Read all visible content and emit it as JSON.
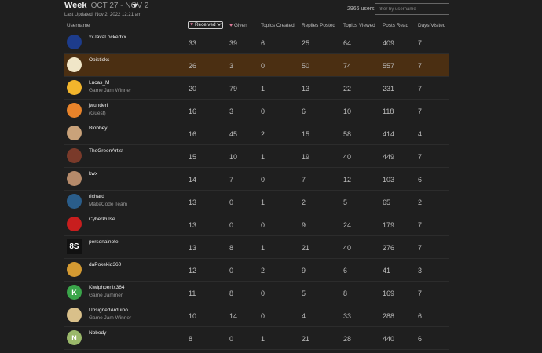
{
  "header": {
    "title": "Week",
    "range": "OCT 27 - NOV 2",
    "updated": "Last Updated: Nov 2, 2022 12:21 am",
    "user_count": "2966 users",
    "filter_placeholder": "filter by username"
  },
  "columns": {
    "username": "Username",
    "received": "Received",
    "given": "Given",
    "topics_created": "Topics Created",
    "replies_posted": "Replies Posted",
    "topics_viewed": "Topics Viewed",
    "posts_read": "Posts Read",
    "days_visited": "Days Visited"
  },
  "rows": [
    {
      "name": "xxJavaLockedxx",
      "title": "",
      "received": "33",
      "given": "39",
      "topics_created": "6",
      "replies_posted": "25",
      "topics_viewed": "64",
      "posts_read": "409",
      "days_visited": "7",
      "avatar_color": "#1d3c8c",
      "avatar_text": ""
    },
    {
      "name": "Opisticks",
      "title": "",
      "received": "26",
      "given": "3",
      "topics_created": "0",
      "replies_posted": "50",
      "topics_viewed": "74",
      "posts_read": "557",
      "days_visited": "7",
      "avatar_color": "#f0e6c8",
      "avatar_text": ""
    },
    {
      "name": "Lucas_M",
      "title": "Game Jam Winner",
      "received": "20",
      "given": "79",
      "topics_created": "1",
      "replies_posted": "13",
      "topics_viewed": "22",
      "posts_read": "231",
      "days_visited": "7",
      "avatar_color": "#f2b52c",
      "avatar_text": ""
    },
    {
      "name": "jwunderl",
      "title": "(Guest)",
      "received": "16",
      "given": "3",
      "topics_created": "0",
      "replies_posted": "6",
      "topics_viewed": "10",
      "posts_read": "118",
      "days_visited": "7",
      "avatar_color": "#e8832a",
      "avatar_text": ""
    },
    {
      "name": "Blobbey",
      "title": "",
      "received": "16",
      "given": "45",
      "topics_created": "2",
      "replies_posted": "15",
      "topics_viewed": "58",
      "posts_read": "414",
      "days_visited": "4",
      "avatar_color": "#c9a27a",
      "avatar_text": ""
    },
    {
      "name": "TheGreenArtist",
      "title": "",
      "received": "15",
      "given": "10",
      "topics_created": "1",
      "replies_posted": "19",
      "topics_viewed": "40",
      "posts_read": "449",
      "days_visited": "7",
      "avatar_color": "#7a3a2a",
      "avatar_text": ""
    },
    {
      "name": "kwx",
      "title": "",
      "received": "14",
      "given": "7",
      "topics_created": "0",
      "replies_posted": "7",
      "topics_viewed": "12",
      "posts_read": "103",
      "days_visited": "6",
      "avatar_color": "#b58a6a",
      "avatar_text": ""
    },
    {
      "name": "richard",
      "title": "MakeCode Team",
      "received": "13",
      "given": "0",
      "topics_created": "1",
      "replies_posted": "2",
      "topics_viewed": "5",
      "posts_read": "65",
      "days_visited": "2",
      "avatar_color": "#2a5d8a",
      "avatar_text": ""
    },
    {
      "name": "CyberPulse",
      "title": "",
      "received": "13",
      "given": "0",
      "topics_created": "0",
      "replies_posted": "9",
      "topics_viewed": "24",
      "posts_read": "179",
      "days_visited": "7",
      "avatar_color": "#c81e1e",
      "avatar_text": ""
    },
    {
      "name": "personalnote",
      "title": "",
      "received": "13",
      "given": "8",
      "topics_created": "1",
      "replies_posted": "21",
      "topics_viewed": "40",
      "posts_read": "276",
      "days_visited": "7",
      "avatar_color": "#111111",
      "avatar_text": "8S"
    },
    {
      "name": "daPokekid360",
      "title": "",
      "received": "12",
      "given": "0",
      "topics_created": "2",
      "replies_posted": "9",
      "topics_viewed": "6",
      "posts_read": "41",
      "days_visited": "3",
      "avatar_color": "#d49a32",
      "avatar_text": ""
    },
    {
      "name": "Kiwiphoenix364",
      "title": "Game Jammer",
      "received": "11",
      "given": "8",
      "topics_created": "0",
      "replies_posted": "5",
      "topics_viewed": "8",
      "posts_read": "169",
      "days_visited": "7",
      "avatar_color": "#3aa54a",
      "avatar_text": "K"
    },
    {
      "name": "UnsignedArduino",
      "title": "Game Jam Winner",
      "received": "10",
      "given": "14",
      "topics_created": "0",
      "replies_posted": "4",
      "topics_viewed": "33",
      "posts_read": "288",
      "days_visited": "6",
      "avatar_color": "#d9c08a",
      "avatar_text": ""
    },
    {
      "name": "Nobody",
      "title": "",
      "received": "8",
      "given": "0",
      "topics_created": "1",
      "replies_posted": "21",
      "topics_viewed": "28",
      "posts_read": "440",
      "days_visited": "6",
      "avatar_color": "#9ab86a",
      "avatar_text": "N"
    }
  ],
  "highlight_color": "#4b2f12",
  "heart_color": "#e07c9b"
}
